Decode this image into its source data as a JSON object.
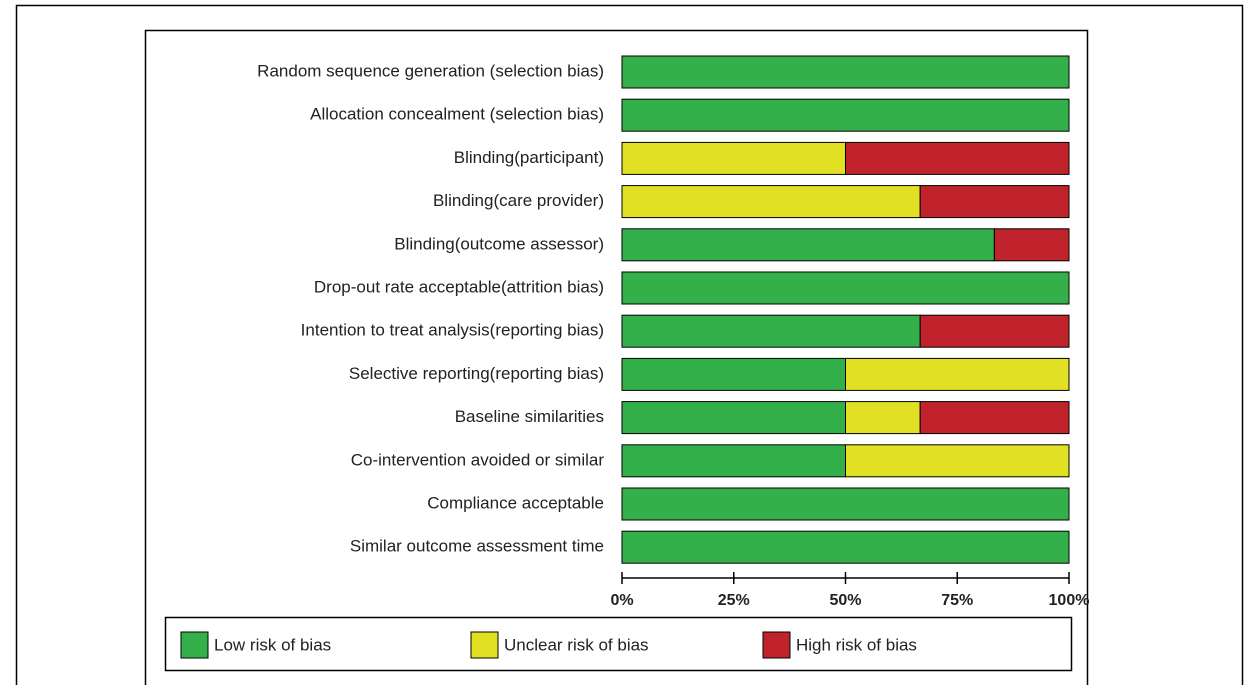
{
  "chart_data": {
    "type": "stacked-barh",
    "categories": [
      "Random sequence generation (selection bias)",
      "Allocation concealment (selection bias)",
      "Blinding(participant)",
      "Blinding(care provider)",
      "Blinding(outcome assessor)",
      "Drop-out rate acceptable(attrition bias)",
      "Intention to treat analysis(reporting bias)",
      "Selective reporting(reporting bias)",
      "Baseline similarities",
      "Co-intervention avoided or similar",
      "Compliance acceptable",
      "Similar outcome assessment time"
    ],
    "series": [
      {
        "name": "Low risk of bias",
        "color": "#33b04a",
        "values": [
          100,
          100,
          0,
          0,
          83.3,
          100,
          66.7,
          50,
          50,
          50,
          100,
          100
        ]
      },
      {
        "name": "Unclear risk of bias",
        "color": "#e2e022",
        "values": [
          0,
          0,
          50,
          66.7,
          0,
          0,
          0,
          50,
          16.7,
          50,
          0,
          0
        ]
      },
      {
        "name": "High risk of bias",
        "color": "#c0232b",
        "values": [
          0,
          0,
          50,
          33.3,
          16.7,
          0,
          33.3,
          0,
          33.3,
          0,
          0,
          0
        ]
      }
    ],
    "xlim": [
      0,
      100
    ],
    "xticks": [
      {
        "value": 0,
        "label": "0%"
      },
      {
        "value": 25,
        "label": "25%"
      },
      {
        "value": 50,
        "label": "50%"
      },
      {
        "value": 75,
        "label": "75%"
      },
      {
        "value": 100,
        "label": "100%"
      }
    ]
  }
}
